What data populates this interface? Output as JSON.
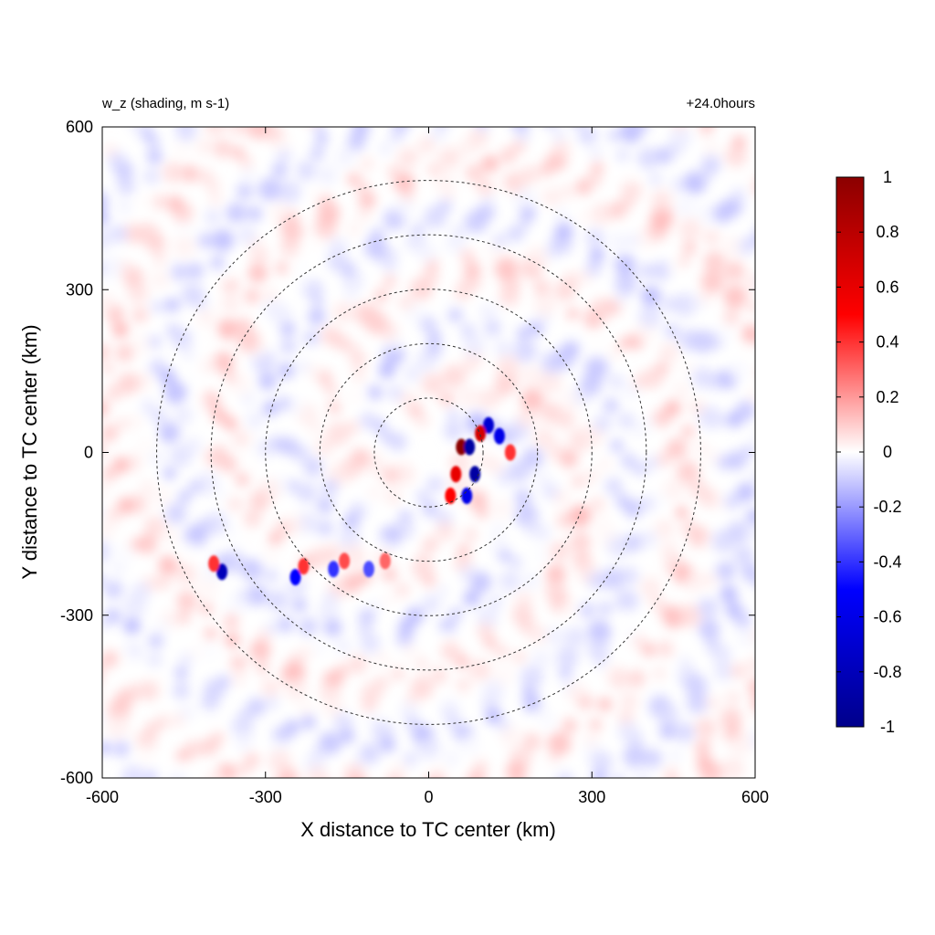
{
  "chart_data": {
    "type": "heatmap",
    "title": "w_z (shading, m s-1)",
    "time_label": "+24.0hours",
    "xlabel": "X distance to TC center (km)",
    "ylabel": "Y distance to TC center (km)",
    "xlim": [
      -600,
      600
    ],
    "ylim": [
      -600,
      600
    ],
    "xticks": [
      -600,
      -300,
      0,
      300,
      600
    ],
    "yticks": [
      -600,
      -300,
      0,
      300,
      600
    ],
    "xtick_labels": [
      "-600",
      "-300",
      "0",
      "300",
      "600"
    ],
    "ytick_labels": [
      "-600",
      "-300",
      "0",
      "300",
      "600"
    ],
    "grid": false,
    "range_rings_km": [
      100,
      200,
      300,
      400,
      500
    ],
    "colorbar": {
      "min": -1,
      "max": 1,
      "ticks": [
        -1,
        -0.8,
        -0.6,
        -0.4,
        -0.2,
        0,
        0.2,
        0.4,
        0.6,
        0.8,
        1
      ],
      "tick_labels": [
        "-1",
        "-0.8",
        "-0.6",
        "-0.4",
        "-0.2",
        "0",
        "0.2",
        "0.4",
        "0.6",
        "0.8",
        "1"
      ],
      "colors": [
        "#00008b",
        "#0000ff",
        "#ffffff",
        "#ff0000",
        "#8b0000"
      ]
    },
    "features": [
      {
        "x": 60,
        "y": 10,
        "value": 1.0
      },
      {
        "x": 75,
        "y": 10,
        "value": -0.9
      },
      {
        "x": 85,
        "y": -40,
        "value": -0.9
      },
      {
        "x": 110,
        "y": 50,
        "value": -0.7
      },
      {
        "x": 130,
        "y": 30,
        "value": -0.6
      },
      {
        "x": 95,
        "y": 35,
        "value": 0.7
      },
      {
        "x": 50,
        "y": -40,
        "value": 0.6
      },
      {
        "x": 40,
        "y": -80,
        "value": 0.5
      },
      {
        "x": 70,
        "y": -80,
        "value": -0.6
      },
      {
        "x": 150,
        "y": 0,
        "value": 0.4
      },
      {
        "x": -380,
        "y": -220,
        "value": -0.8
      },
      {
        "x": -395,
        "y": -205,
        "value": 0.4
      },
      {
        "x": -245,
        "y": -230,
        "value": -0.5
      },
      {
        "x": -230,
        "y": -210,
        "value": 0.4
      },
      {
        "x": -175,
        "y": -215,
        "value": -0.4
      },
      {
        "x": -155,
        "y": -200,
        "value": 0.35
      },
      {
        "x": -110,
        "y": -215,
        "value": -0.35
      },
      {
        "x": -80,
        "y": -200,
        "value": 0.3
      }
    ]
  }
}
